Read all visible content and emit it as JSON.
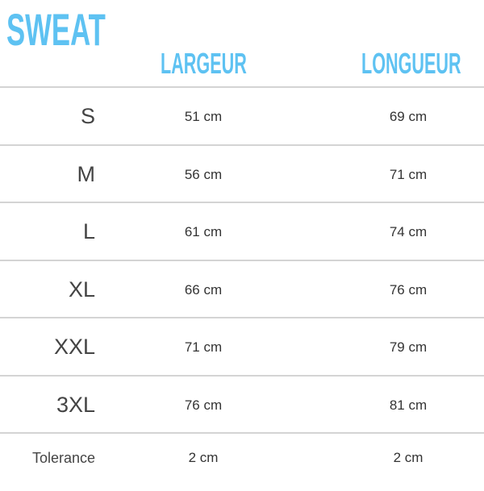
{
  "title": "SWEAT",
  "accent_color": "#5ec2f2",
  "columns": [
    "LARGEUR",
    "LONGUEUR"
  ],
  "rows": [
    {
      "size": "S",
      "largeur": "51 cm",
      "longueur": "69 cm"
    },
    {
      "size": "M",
      "largeur": "56 cm",
      "longueur": "71 cm"
    },
    {
      "size": "L",
      "largeur": "61 cm",
      "longueur": "74 cm"
    },
    {
      "size": "XL",
      "largeur": "66 cm",
      "longueur": "76 cm"
    },
    {
      "size": "XXL",
      "largeur": "71 cm",
      "longueur": "79 cm"
    },
    {
      "size": "3XL",
      "largeur": "76 cm",
      "longueur": "81 cm"
    },
    {
      "size": "Tolerance",
      "largeur": "2 cm",
      "longueur": "2 cm"
    }
  ]
}
